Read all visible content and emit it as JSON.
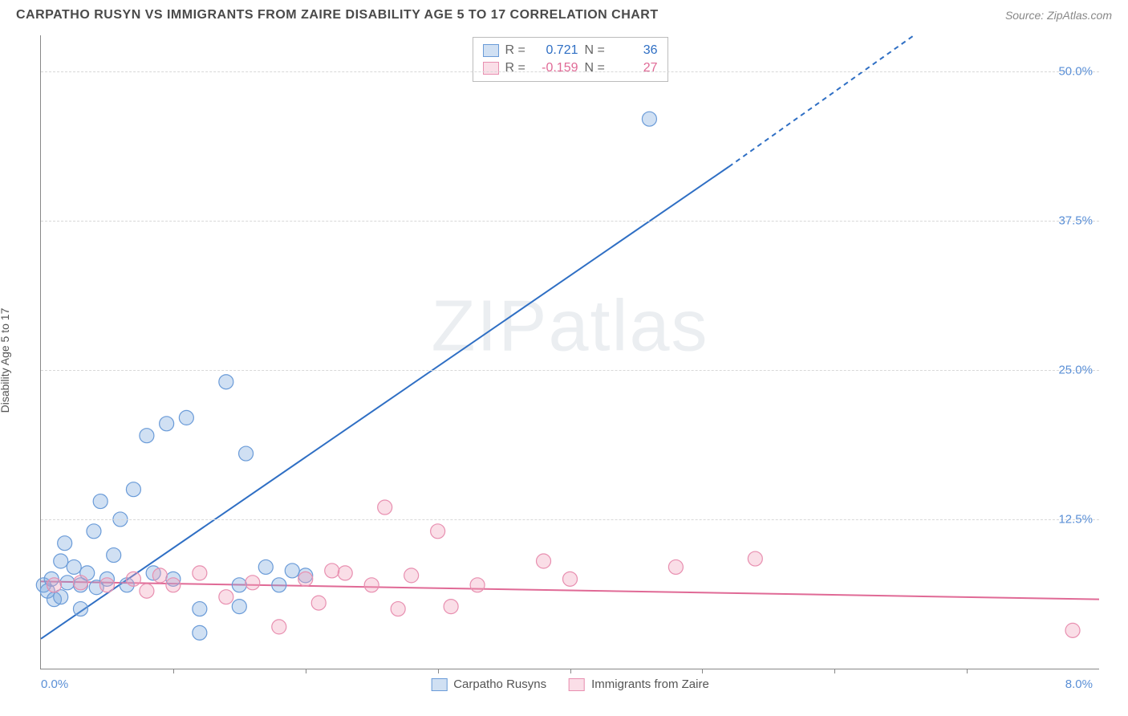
{
  "header": {
    "title": "CARPATHO RUSYN VS IMMIGRANTS FROM ZAIRE DISABILITY AGE 5 TO 17 CORRELATION CHART",
    "source_prefix": "Source: ",
    "source_name": "ZipAtlas.com"
  },
  "axis": {
    "ylabel": "Disability Age 5 to 17",
    "xorigin": "0.0%",
    "xmax": "8.0%",
    "yticks": [
      {
        "value": 12.5,
        "label": "12.5%"
      },
      {
        "value": 25.0,
        "label": "25.0%"
      },
      {
        "value": 37.5,
        "label": "37.5%"
      },
      {
        "value": 50.0,
        "label": "50.0%"
      }
    ],
    "xlim": [
      0,
      8
    ],
    "ylim": [
      0,
      53
    ],
    "gridline_color": "#d8d8d8",
    "axis_color": "#888888",
    "tick_color": "#5a8fd6",
    "label_fontsize": 14,
    "tick_fontsize": 15
  },
  "watermark": {
    "text_bold": "ZIP",
    "text_thin": "atlas"
  },
  "series": [
    {
      "name": "Carpatho Rusyns",
      "legend_label": "Carpatho Rusyns",
      "color_fill": "rgba(120,165,220,0.35)",
      "color_stroke": "#6a9bd8",
      "line_color": "#2f6fc4",
      "stat_R": "0.721",
      "stat_N": "36",
      "stat_color": "#2f6fc4",
      "marker_radius": 9,
      "line_width": 2,
      "regression": {
        "x1": 0.0,
        "y1": 2.5,
        "x2": 5.2,
        "y2": 42.0,
        "dash_from_x": 5.2,
        "dash_to_x": 6.6,
        "dash_to_y": 53.0
      },
      "points": [
        [
          0.02,
          7.0
        ],
        [
          0.05,
          6.5
        ],
        [
          0.08,
          7.5
        ],
        [
          0.1,
          5.8
        ],
        [
          0.15,
          9.0
        ],
        [
          0.15,
          6.0
        ],
        [
          0.18,
          10.5
        ],
        [
          0.2,
          7.2
        ],
        [
          0.25,
          8.5
        ],
        [
          0.3,
          7.0
        ],
        [
          0.3,
          5.0
        ],
        [
          0.35,
          8.0
        ],
        [
          0.4,
          11.5
        ],
        [
          0.42,
          6.8
        ],
        [
          0.45,
          14.0
        ],
        [
          0.5,
          7.5
        ],
        [
          0.55,
          9.5
        ],
        [
          0.6,
          12.5
        ],
        [
          0.65,
          7.0
        ],
        [
          0.7,
          15.0
        ],
        [
          0.8,
          19.5
        ],
        [
          0.85,
          8.0
        ],
        [
          0.95,
          20.5
        ],
        [
          1.0,
          7.5
        ],
        [
          1.1,
          21.0
        ],
        [
          1.2,
          5.0
        ],
        [
          1.4,
          24.0
        ],
        [
          1.5,
          7.0
        ],
        [
          1.55,
          18.0
        ],
        [
          1.7,
          8.5
        ],
        [
          1.8,
          7.0
        ],
        [
          1.9,
          8.2
        ],
        [
          2.0,
          7.8
        ],
        [
          1.2,
          3.0
        ],
        [
          1.5,
          5.2
        ],
        [
          4.6,
          46.0
        ]
      ]
    },
    {
      "name": "Immigrants from Zaire",
      "legend_label": "Immigrants from Zaire",
      "color_fill": "rgba(240,160,185,0.35)",
      "color_stroke": "#e88fb0",
      "line_color": "#e06a96",
      "stat_R": "-0.159",
      "stat_N": "27",
      "stat_color": "#e06a96",
      "marker_radius": 9,
      "line_width": 2,
      "regression": {
        "x1": 0.0,
        "y1": 7.3,
        "x2": 8.0,
        "y2": 5.8
      },
      "points": [
        [
          0.1,
          7.0
        ],
        [
          0.3,
          7.2
        ],
        [
          0.5,
          7.0
        ],
        [
          0.7,
          7.5
        ],
        [
          0.8,
          6.5
        ],
        [
          0.9,
          7.8
        ],
        [
          1.0,
          7.0
        ],
        [
          1.2,
          8.0
        ],
        [
          1.4,
          6.0
        ],
        [
          1.6,
          7.2
        ],
        [
          1.8,
          3.5
        ],
        [
          2.0,
          7.5
        ],
        [
          2.1,
          5.5
        ],
        [
          2.3,
          8.0
        ],
        [
          2.5,
          7.0
        ],
        [
          2.6,
          13.5
        ],
        [
          2.7,
          5.0
        ],
        [
          2.8,
          7.8
        ],
        [
          3.0,
          11.5
        ],
        [
          3.1,
          5.2
        ],
        [
          3.3,
          7.0
        ],
        [
          3.8,
          9.0
        ],
        [
          4.0,
          7.5
        ],
        [
          4.8,
          8.5
        ],
        [
          5.4,
          9.2
        ],
        [
          7.8,
          3.2
        ],
        [
          2.2,
          8.2
        ]
      ]
    }
  ],
  "stat_labels": {
    "R": "R  =",
    "N": "N  ="
  },
  "background_color": "#ffffff"
}
